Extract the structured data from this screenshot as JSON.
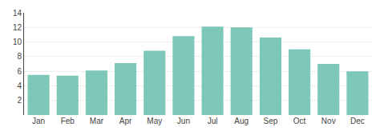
{
  "chart_data": {
    "type": "bar",
    "categories": [
      "Jan",
      "Feb",
      "Mar",
      "Apr",
      "May",
      "Jun",
      "Jul",
      "Aug",
      "Sep",
      "Oct",
      "Nov",
      "Dec"
    ],
    "values": [
      5.5,
      5.4,
      6.1,
      7.1,
      8.8,
      10.8,
      12.1,
      12.0,
      10.6,
      9.0,
      7.0,
      6.0
    ],
    "color": "#7dc8b8",
    "ylim": [
      0,
      14
    ],
    "yticks": [
      2,
      4,
      6,
      8,
      10,
      12,
      14
    ],
    "grid": true
  }
}
